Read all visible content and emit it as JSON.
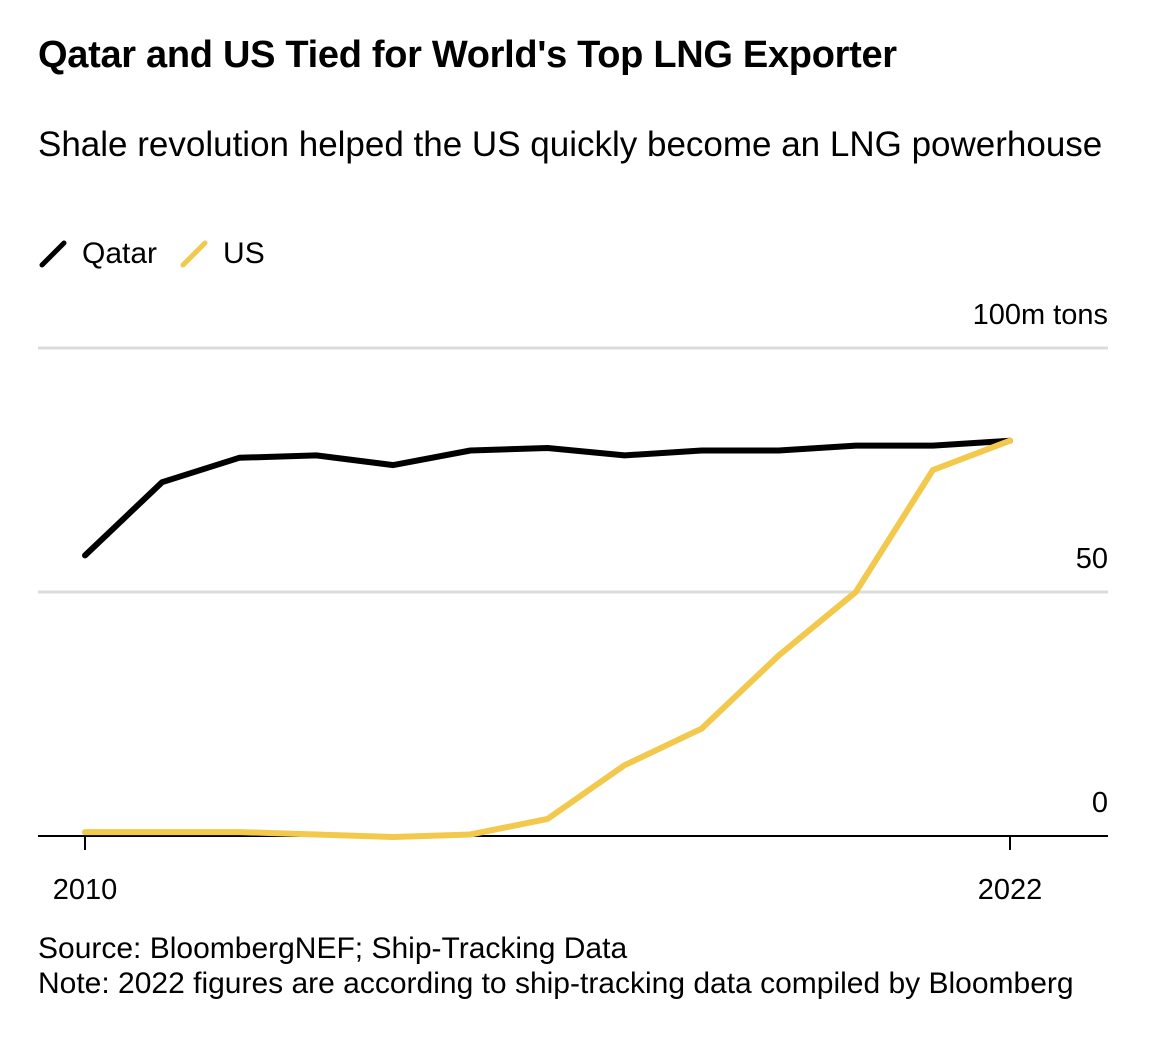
{
  "header": {
    "title": "Qatar and US Tied for World's Top LNG Exporter",
    "subtitle": "Shale revolution helped the US quickly become an LNG powerhouse"
  },
  "footer": {
    "source": "Source: BloombergNEF; Ship-Tracking Data",
    "note": "Note: 2022 figures are according to ship-tracking data compiled by Bloomberg"
  },
  "chart_data": {
    "type": "line",
    "title": "Qatar and US Tied for World's Top LNG Exporter",
    "subtitle": "Shale revolution helped the US quickly become an LNG powerhouse",
    "x": [
      2010,
      2011,
      2012,
      2013,
      2014,
      2015,
      2016,
      2017,
      2018,
      2019,
      2020,
      2021,
      2022
    ],
    "x_tick_labels": [
      "2010",
      "2022"
    ],
    "y_tick_labels": [
      "0",
      "50",
      "100m tons"
    ],
    "y_ticks": [
      0,
      50,
      100
    ],
    "ylim": [
      0,
      100
    ],
    "grid": true,
    "legend_position": "top-left",
    "series": [
      {
        "name": "Qatar",
        "color": "#000000",
        "values": [
          57.5,
          72.5,
          77.5,
          78,
          76,
          79,
          79.5,
          78,
          79,
          79,
          80,
          80,
          81
        ]
      },
      {
        "name": "US",
        "color": "#f2c94c",
        "values": [
          0.8,
          0.8,
          0.8,
          0.3,
          -0.2,
          0.3,
          3.5,
          14.5,
          22,
          37,
          50,
          75,
          81
        ]
      }
    ]
  }
}
